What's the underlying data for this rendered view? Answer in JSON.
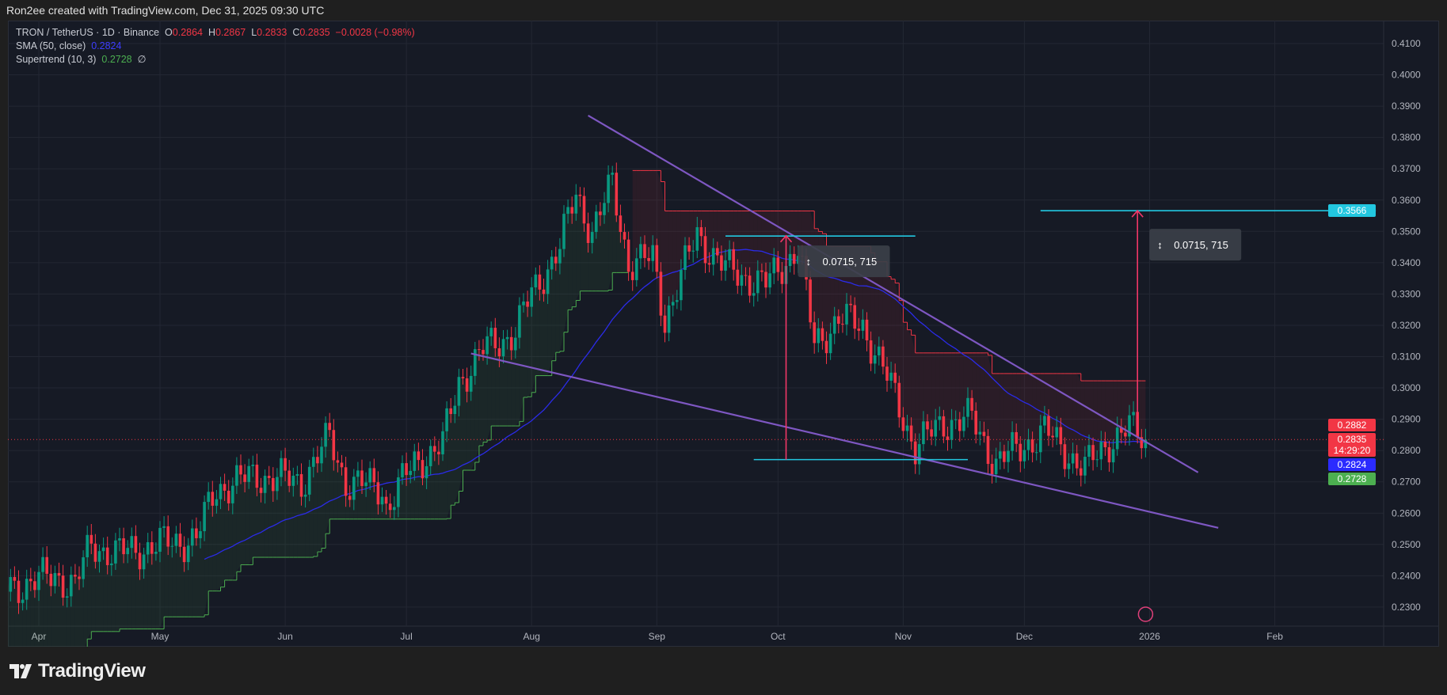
{
  "header": {
    "credit": "Ron2ee created with TradingView.com, Dec 31, 2025 09:30 UTC"
  },
  "legend": {
    "symbol": "TRON / TetherUS · 1D · Binance",
    "open_label": "O",
    "open": "0.2864",
    "high_label": "H",
    "high": "0.2867",
    "low_label": "L",
    "low": "0.2833",
    "close_label": "C",
    "close": "0.2835",
    "change": "−0.0028 (−0.98%)",
    "sma_label": "SMA (50, close)",
    "sma_value": "0.2824",
    "supertrend_label": "Supertrend (10, 3)",
    "supertrend_value": "0.2728",
    "supertrend_icon": "∅"
  },
  "footer": {
    "brand": "TradingView"
  },
  "colors": {
    "up": "#089981",
    "down": "#f23645",
    "sma": "#2b2be8",
    "supertrend_up": "#4caf50",
    "supertrend_down": "#f23645",
    "wedge": "#7e57c2",
    "level": "#22c7e0",
    "arrow": "#f23667",
    "background": "#161a25"
  },
  "chart_data": {
    "type": "candlestick",
    "title": "TRON / TetherUS · 1D · Binance",
    "ylim": [
      0.225,
      0.413
    ],
    "y_ticks": [
      "0.2300",
      "0.2400",
      "0.2500",
      "0.2600",
      "0.2700",
      "0.2800",
      "0.2900",
      "0.3000",
      "0.3100",
      "0.3200",
      "0.3300",
      "0.3400",
      "0.3500",
      "0.3600",
      "0.3700",
      "0.3800",
      "0.3900",
      "0.4000",
      "0.4100"
    ],
    "x_ticks": [
      {
        "label": "Apr",
        "date": "2025-04-01"
      },
      {
        "label": "May",
        "date": "2025-05-01"
      },
      {
        "label": "Jun",
        "date": "2025-06-01"
      },
      {
        "label": "Jul",
        "date": "2025-07-01"
      },
      {
        "label": "Aug",
        "date": "2025-08-01"
      },
      {
        "label": "Sep",
        "date": "2025-09-01"
      },
      {
        "label": "Oct",
        "date": "2025-10-01"
      },
      {
        "label": "Nov",
        "date": "2025-11-01"
      },
      {
        "label": "Dec",
        "date": "2025-12-01"
      },
      {
        "label": "2026",
        "date": "2026-01-01"
      },
      {
        "label": "Feb",
        "date": "2026-02-01"
      }
    ],
    "close_path": [
      [
        "2025-03-24",
        0.236
      ],
      [
        "2025-04-05",
        0.24
      ],
      [
        "2025-04-10",
        0.237
      ],
      [
        "2025-04-14",
        0.25
      ],
      [
        "2025-04-20",
        0.247
      ],
      [
        "2025-05-01",
        0.25
      ],
      [
        "2025-05-10",
        0.252
      ],
      [
        "2025-05-15",
        0.268
      ],
      [
        "2025-05-25",
        0.272
      ],
      [
        "2025-06-05",
        0.27
      ],
      [
        "2025-06-12",
        0.284
      ],
      [
        "2025-06-16",
        0.27
      ],
      [
        "2025-06-25",
        0.268
      ],
      [
        "2025-06-26",
        0.262
      ],
      [
        "2025-07-03",
        0.276
      ],
      [
        "2025-07-10",
        0.282
      ],
      [
        "2025-07-14",
        0.302
      ],
      [
        "2025-07-20",
        0.312
      ],
      [
        "2025-07-28",
        0.318
      ],
      [
        "2025-08-01",
        0.33
      ],
      [
        "2025-08-08",
        0.345
      ],
      [
        "2025-08-12",
        0.362
      ],
      [
        "2025-08-16",
        0.35
      ],
      [
        "2025-08-21",
        0.365
      ],
      [
        "2025-08-25",
        0.34
      ],
      [
        "2025-08-31",
        0.341
      ],
      [
        "2025-09-03",
        0.322
      ],
      [
        "2025-09-06",
        0.332
      ],
      [
        "2025-09-11",
        0.349
      ],
      [
        "2025-09-18",
        0.338
      ],
      [
        "2025-09-28",
        0.333
      ],
      [
        "2025-10-06",
        0.345
      ],
      [
        "2025-10-10",
        0.314
      ],
      [
        "2025-10-16",
        0.322
      ],
      [
        "2025-10-22",
        0.32
      ],
      [
        "2025-10-26",
        0.309
      ],
      [
        "2025-10-30",
        0.297
      ],
      [
        "2025-11-04",
        0.281
      ],
      [
        "2025-11-11",
        0.289
      ],
      [
        "2025-11-18",
        0.29
      ],
      [
        "2025-11-24",
        0.276
      ],
      [
        "2025-11-30",
        0.281
      ],
      [
        "2025-12-06",
        0.286
      ],
      [
        "2025-12-12",
        0.279
      ],
      [
        "2025-12-16",
        0.274
      ],
      [
        "2025-12-22",
        0.283
      ],
      [
        "2025-12-27",
        0.287
      ],
      [
        "2025-12-31",
        0.2835
      ]
    ],
    "indicators": [
      {
        "name": "SMA (50, close)",
        "last": 0.2824
      },
      {
        "name": "Supertrend (10, 3)",
        "last": 0.2728
      }
    ],
    "drawings": {
      "wedge_upper": [
        [
          "2025-08-15",
          0.387
        ],
        [
          "2026-01-13",
          0.273
        ]
      ],
      "wedge_lower": [
        [
          "2025-07-17",
          0.311
        ],
        [
          "2026-01-18",
          0.2553
        ]
      ],
      "levels": [
        {
          "from": "2025-09-18",
          "to": "2025-11-04",
          "price": 0.3485
        },
        {
          "from": "2025-09-25",
          "to": "2025-11-17",
          "price": 0.2771
        },
        {
          "from": "2025-12-05",
          "to": "2026-02-26",
          "price": 0.3566
        }
      ],
      "measures": [
        {
          "date": "2025-10-03",
          "from": 0.2771,
          "to": 0.3486,
          "label": "0.0715, 715"
        },
        {
          "date": "2025-12-29",
          "from": 0.2851,
          "to": 0.3566,
          "label": "0.0715, 715"
        }
      ]
    },
    "price_badges": [
      {
        "value": "0.3566",
        "color": "#22c7e0"
      },
      {
        "value": "0.2882",
        "color": "#f23645"
      },
      {
        "value": "0.2835",
        "sub": "14:29:20",
        "color": "#f23645"
      },
      {
        "value": "0.2824",
        "color": "#2b2bff"
      },
      {
        "value": "0.2728",
        "color": "#4caf50"
      }
    ]
  }
}
